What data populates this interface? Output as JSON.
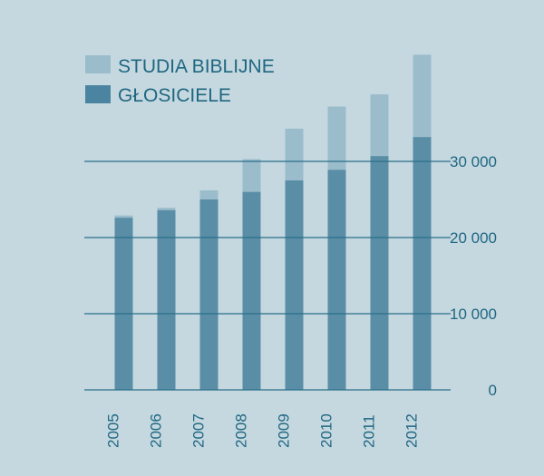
{
  "colors": {
    "background": "#c5d8e0",
    "studia": "#9bbccb",
    "glosiciele": "#5a8ea6",
    "legend_glosiciele": "#4a84a1",
    "gridline": "#2a6e89",
    "text": "#1f6781"
  },
  "chart_data": {
    "type": "bar",
    "stacked": true,
    "categories": [
      "2005",
      "2006",
      "2007",
      "2008",
      "2009",
      "2010",
      "2011",
      "2012"
    ],
    "series": [
      {
        "name": "GŁOSICIELE",
        "values": [
          22600,
          23600,
          25000,
          26000,
          27500,
          28900,
          30700,
          33200
        ]
      },
      {
        "name": "STUDIA BIBLIJNE",
        "values": [
          300,
          300,
          1200,
          4300,
          6800,
          8300,
          8100,
          10800
        ]
      }
    ],
    "legend": [
      "STUDIA BIBLIJNE",
      "GŁOSICIELE"
    ],
    "legend_position": "top-left",
    "y_ticks": [
      {
        "value": 0,
        "label": "0"
      },
      {
        "value": 10000,
        "label": "10 000"
      },
      {
        "value": 20000,
        "label": "20 000"
      },
      {
        "value": 30000,
        "label": "30 000"
      }
    ],
    "y_axis_position": "right",
    "x_tick_rotation": "vertical",
    "ylim": [
      0,
      45000
    ],
    "grid": true
  }
}
